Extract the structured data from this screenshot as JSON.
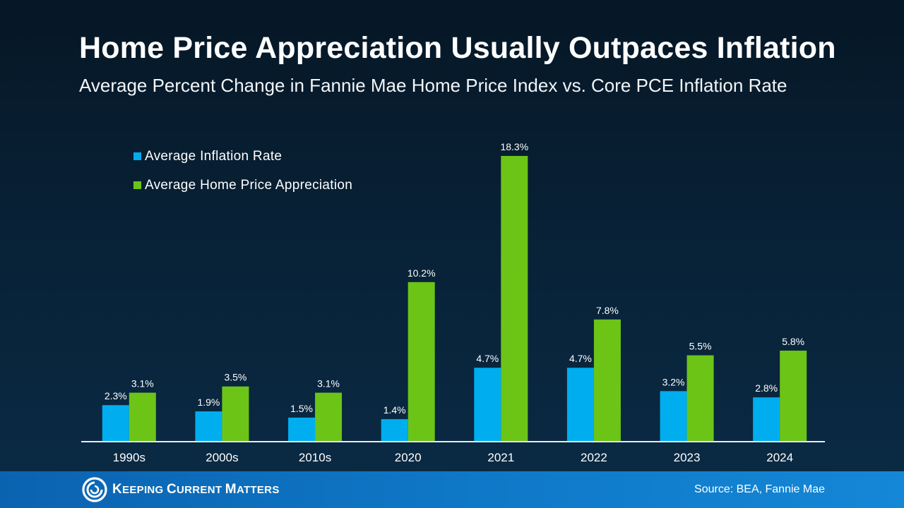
{
  "header": {
    "title": "Home Price Appreciation Usually Outpaces Inflation",
    "subtitle": "Average Percent Change in Fannie Mae Home Price Index vs. Core PCE Inflation Rate"
  },
  "chart_data": {
    "type": "bar",
    "title": "Home Price Appreciation Usually Outpaces Inflation",
    "subtitle": "Average Percent Change in Fannie Mae Home Price Index vs. Core PCE Inflation Rate",
    "categories": [
      "1990s",
      "2000s",
      "2010s",
      "2020",
      "2021",
      "2022",
      "2023",
      "2024"
    ],
    "series": [
      {
        "name": "Average Inflation Rate",
        "color": "#00aeef",
        "values": [
          2.3,
          1.9,
          1.5,
          1.4,
          4.7,
          4.7,
          3.2,
          2.8
        ],
        "labels": [
          "2.3%",
          "1.9%",
          "1.5%",
          "1.4%",
          "4.7%",
          "4.7%",
          "3.2%",
          "2.8%"
        ]
      },
      {
        "name": "Average Home Price Appreciation",
        "color": "#6cc417",
        "values": [
          3.1,
          3.5,
          3.1,
          10.2,
          18.3,
          7.8,
          5.5,
          5.8
        ],
        "labels": [
          "3.1%",
          "3.5%",
          "3.1%",
          "10.2%",
          "18.3%",
          "7.8%",
          "5.5%",
          "5.8%"
        ]
      }
    ],
    "ylim": [
      0,
      18.3
    ],
    "grid": false,
    "legend_placement": "top-left"
  },
  "footer": {
    "brand_first_initial": "K",
    "brand_first_rest": "eeping",
    "brand_second_initial": "C",
    "brand_second_rest": "urrent",
    "brand_third_initial": "M",
    "brand_third_rest": "atters",
    "source": "Source: BEA, Fannie Mae"
  }
}
